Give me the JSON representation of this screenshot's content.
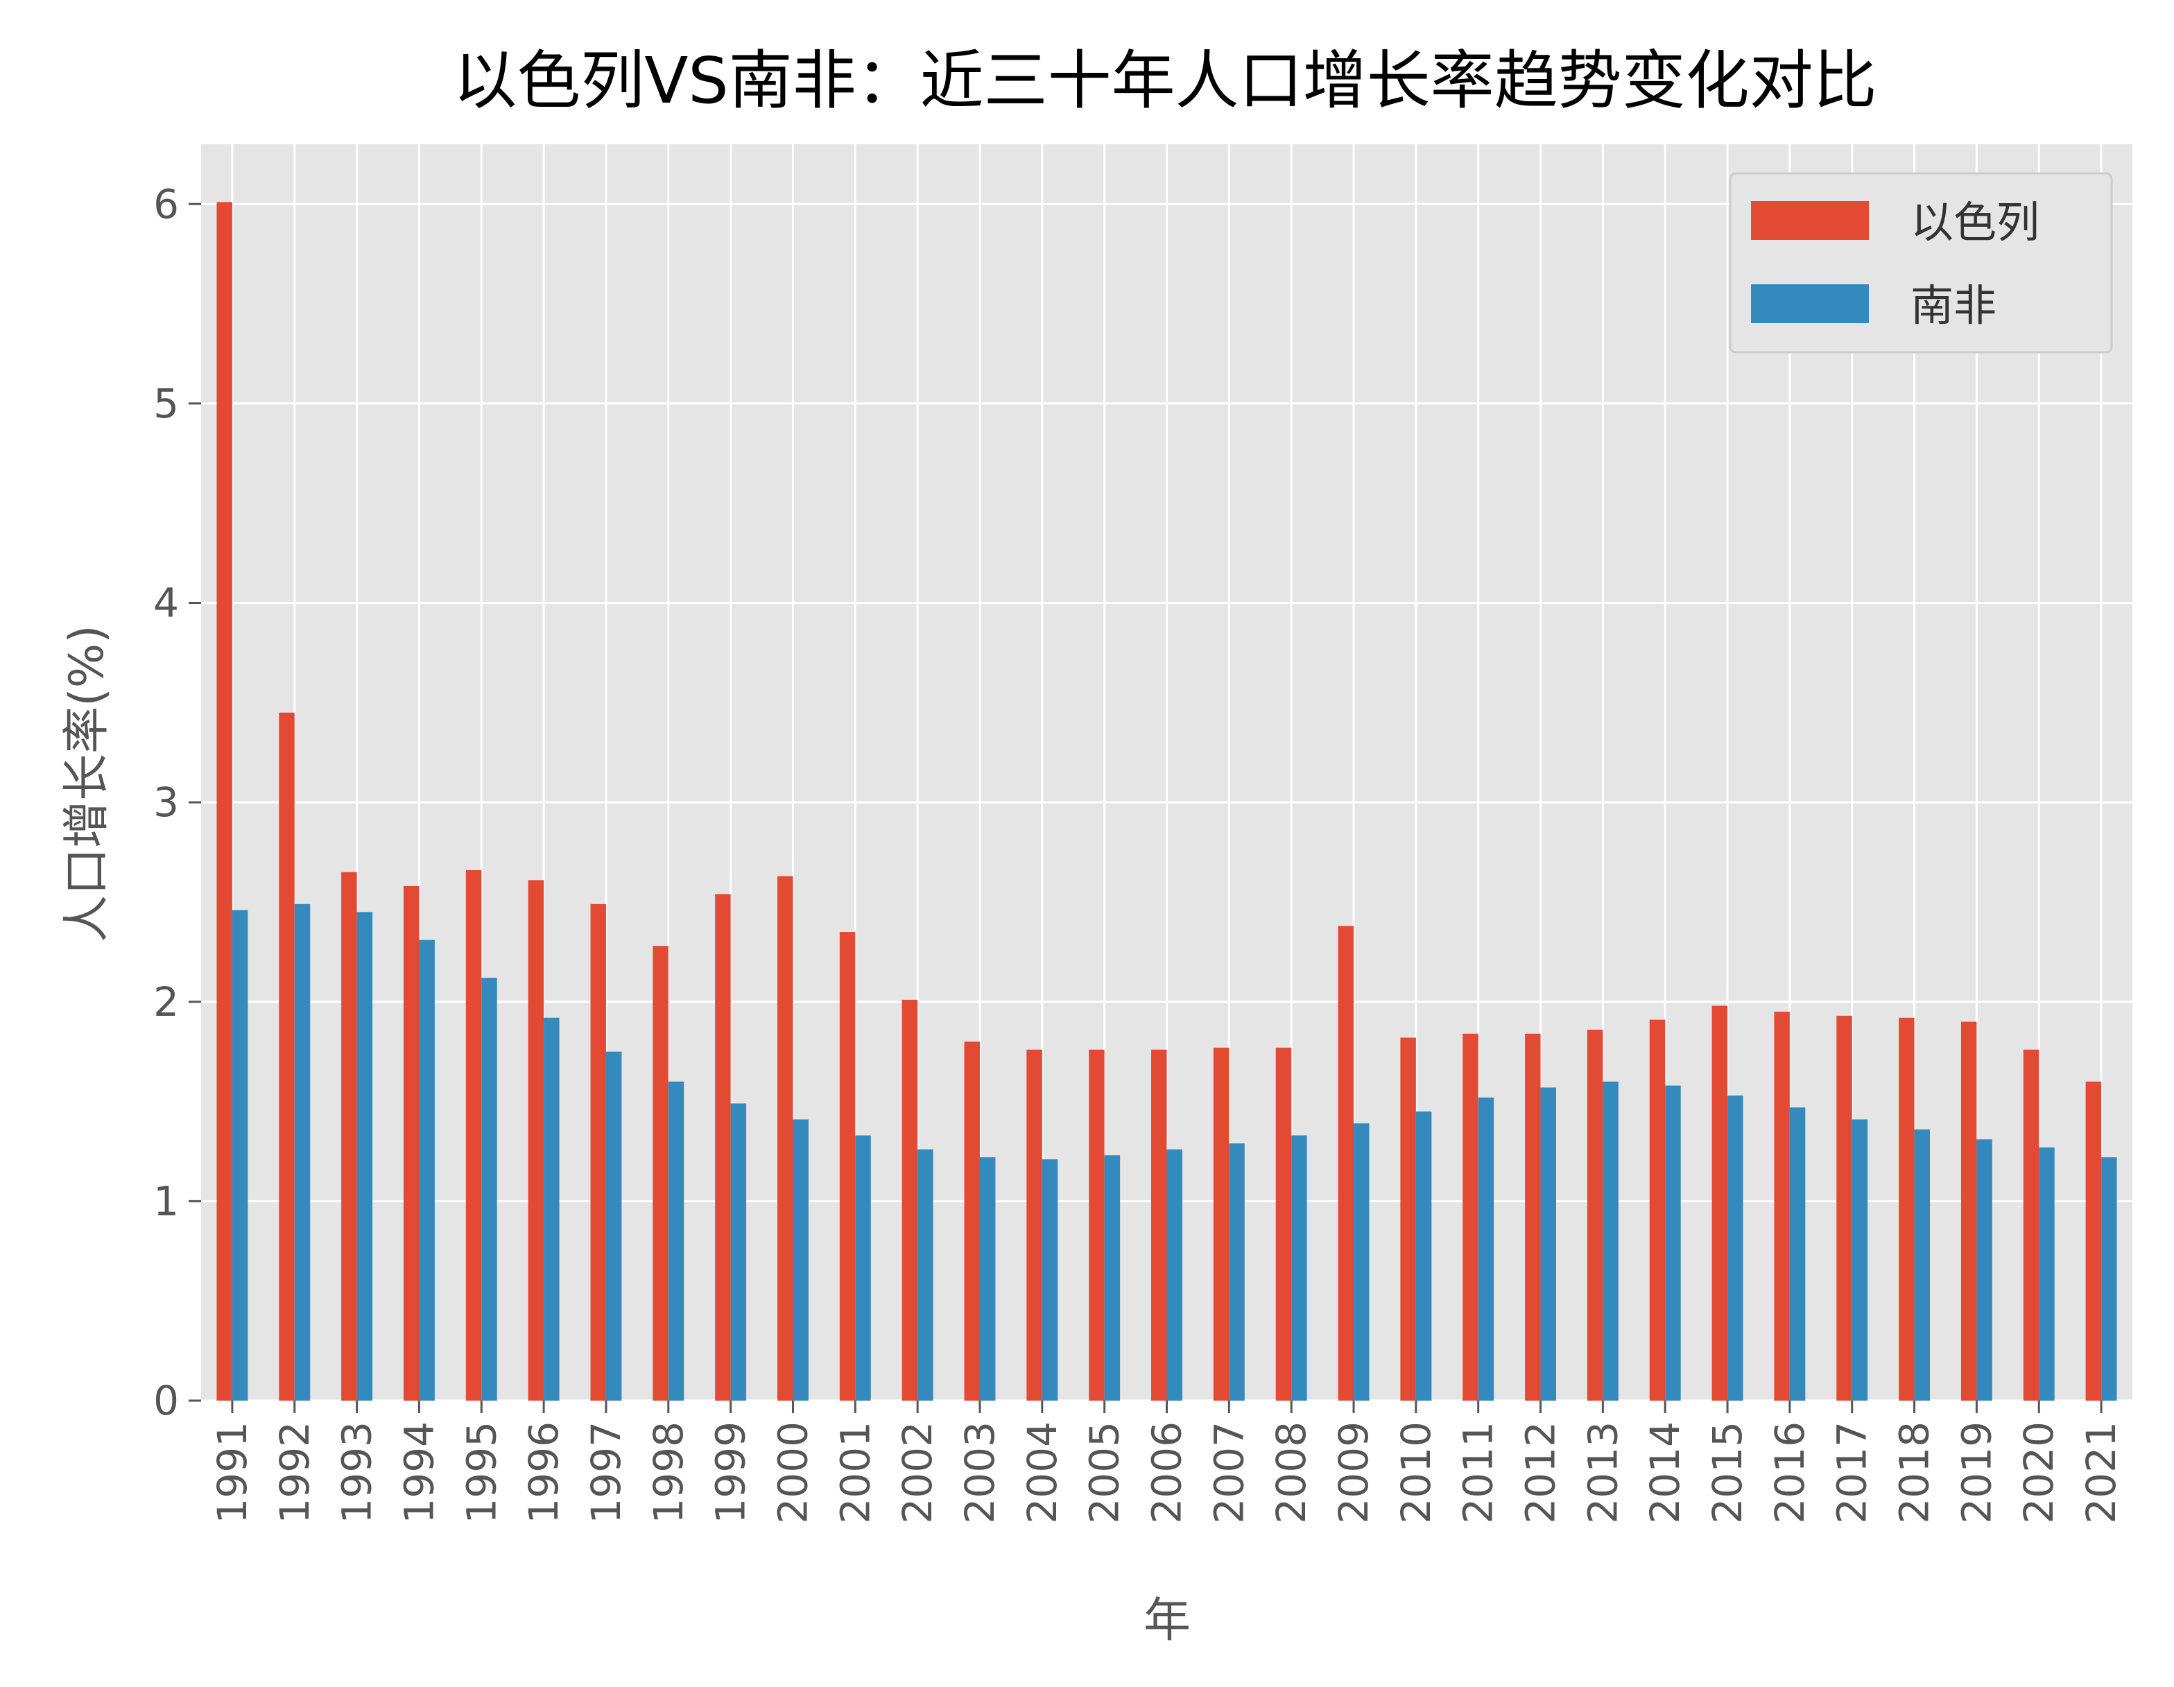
{
  "chart_data": {
    "type": "bar",
    "title": "以色列VS南非：近三十年人口增长率趋势变化对比",
    "xlabel": "年",
    "ylabel": "人口增长率(%)",
    "ylim": [
      0,
      6.3
    ],
    "yticks": [
      "0",
      "1",
      "2",
      "3",
      "4",
      "5",
      "6"
    ],
    "grid": true,
    "legend_position": "top-right",
    "categories": [
      "1991",
      "1992",
      "1993",
      "1994",
      "1995",
      "1996",
      "1997",
      "1998",
      "1999",
      "2000",
      "2001",
      "2002",
      "2003",
      "2004",
      "2005",
      "2006",
      "2007",
      "2008",
      "2009",
      "2010",
      "2011",
      "2012",
      "2013",
      "2014",
      "2015",
      "2016",
      "2017",
      "2018",
      "2019",
      "2020",
      "2021"
    ],
    "series": [
      {
        "name": "以色列",
        "color": "#E24A33",
        "values": [
          6.01,
          3.45,
          2.65,
          2.58,
          2.66,
          2.61,
          2.49,
          2.28,
          2.54,
          2.63,
          2.35,
          2.01,
          1.8,
          1.76,
          1.76,
          1.76,
          1.77,
          1.77,
          2.38,
          1.82,
          1.84,
          1.84,
          1.86,
          1.91,
          1.98,
          1.95,
          1.93,
          1.92,
          1.9,
          1.76,
          1.6
        ]
      },
      {
        "name": "南非",
        "color": "#348ABD",
        "values": [
          2.46,
          2.49,
          2.45,
          2.31,
          2.12,
          1.92,
          1.75,
          1.6,
          1.49,
          1.41,
          1.33,
          1.26,
          1.22,
          1.21,
          1.23,
          1.26,
          1.29,
          1.33,
          1.39,
          1.45,
          1.52,
          1.57,
          1.6,
          1.58,
          1.53,
          1.47,
          1.41,
          1.36,
          1.31,
          1.27,
          1.22
        ]
      }
    ]
  }
}
